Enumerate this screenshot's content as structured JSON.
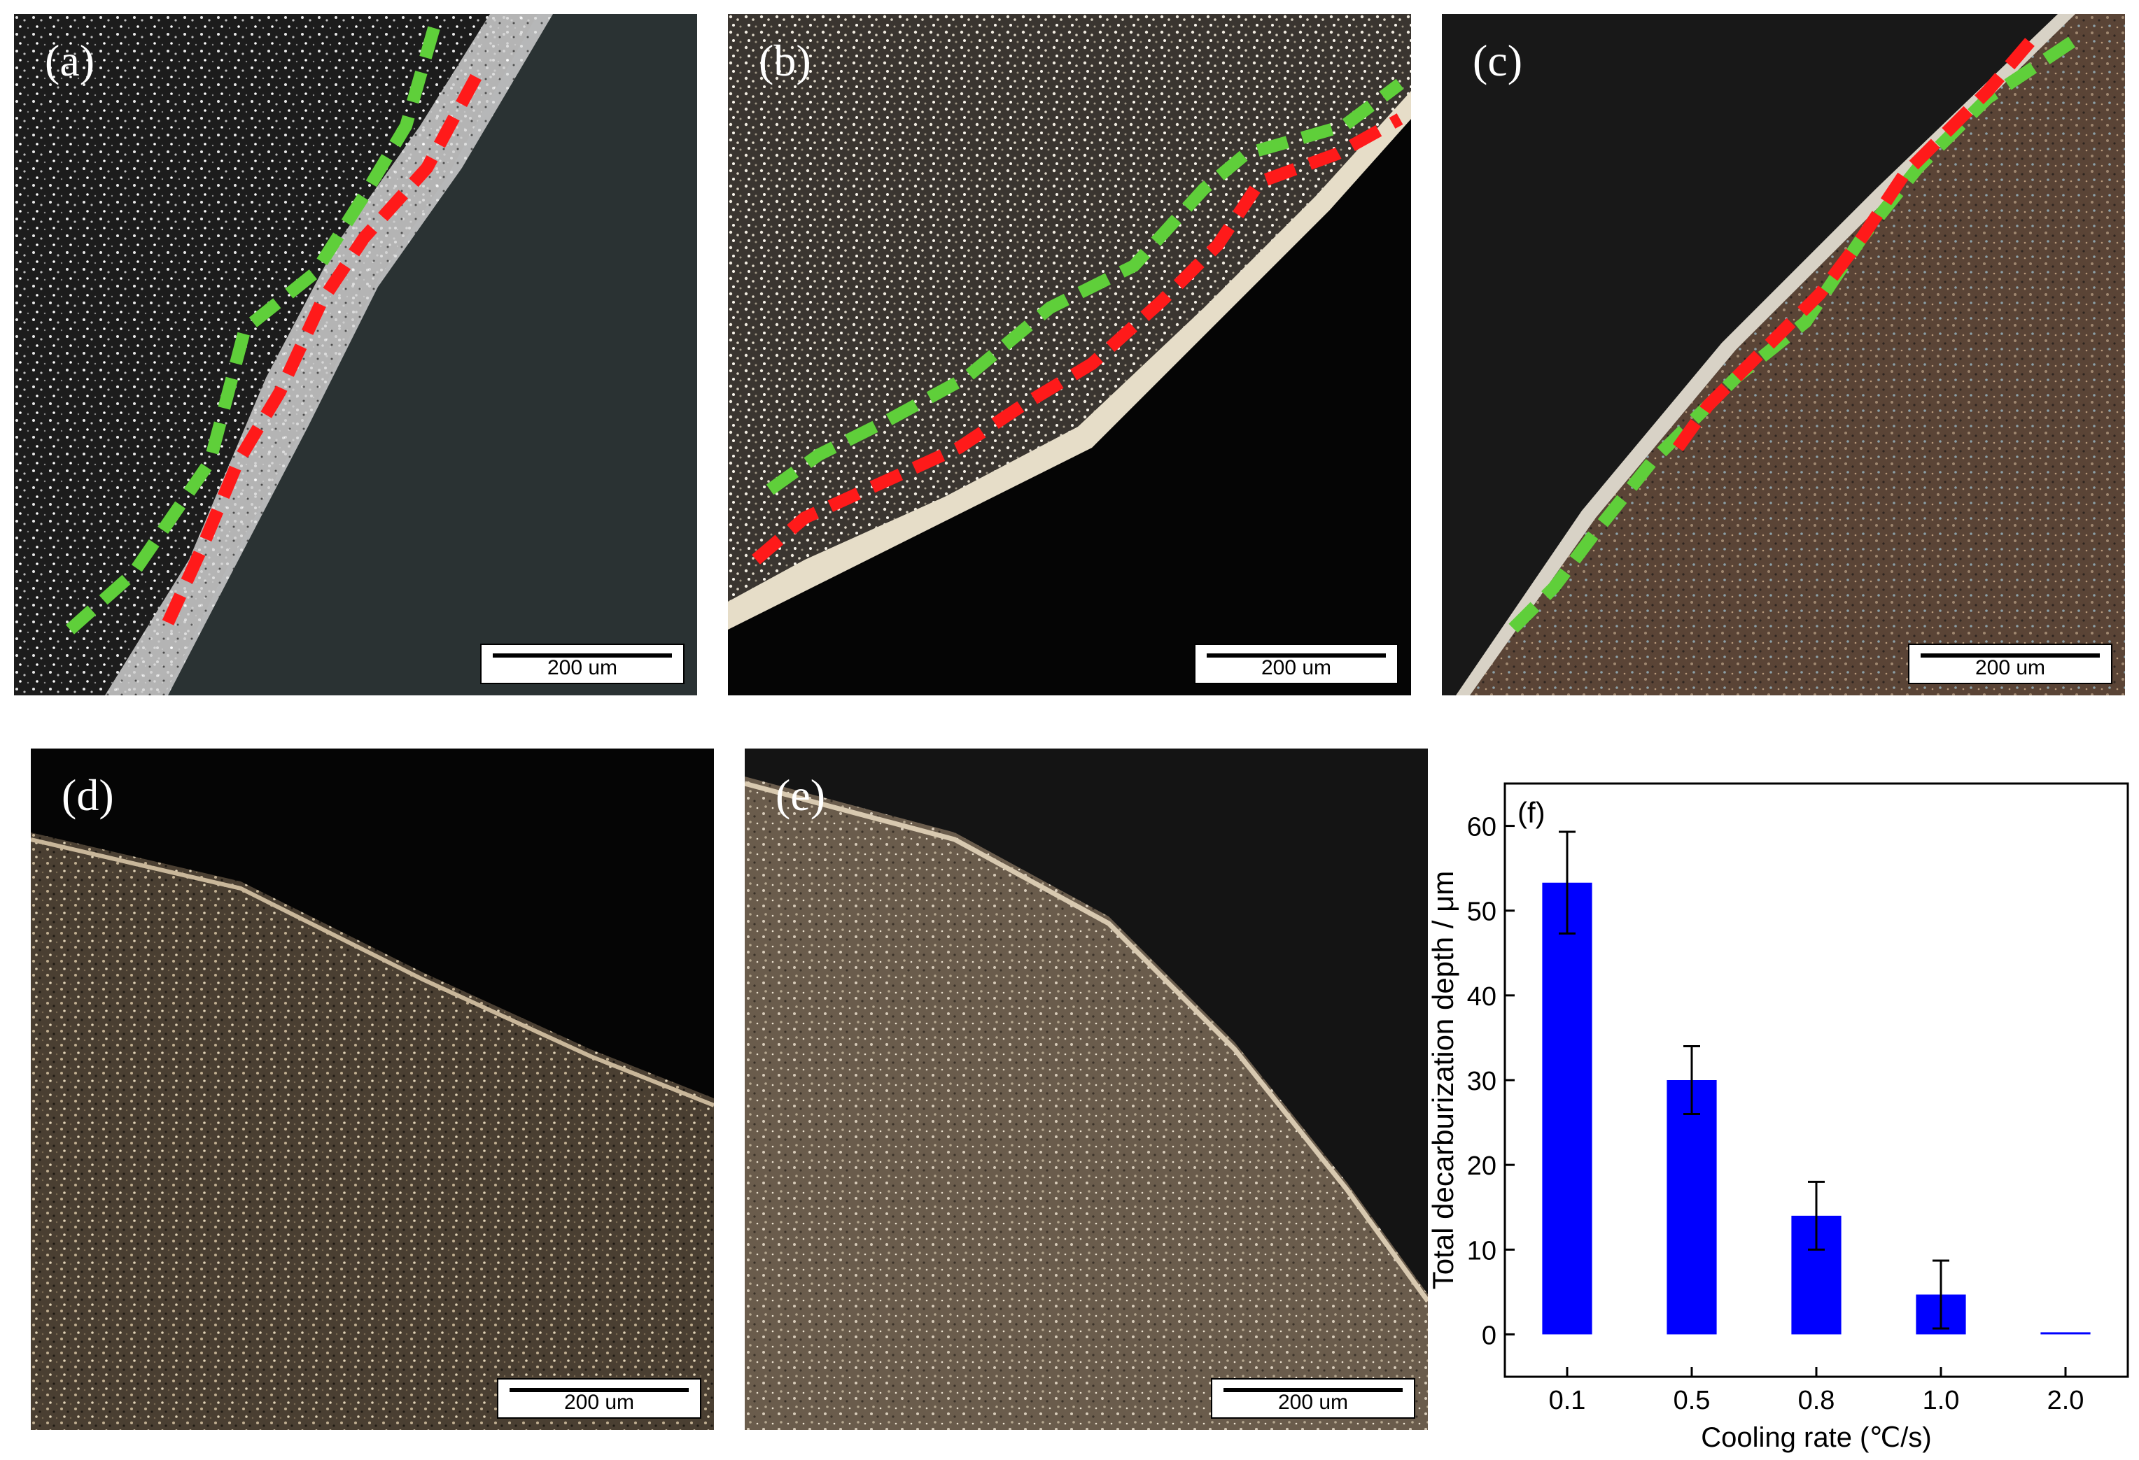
{
  "panels": [
    {
      "id": "a",
      "label": "(a)",
      "scale": "200 um"
    },
    {
      "id": "b",
      "label": "(b)",
      "scale": "200 um"
    },
    {
      "id": "c",
      "label": "(c)",
      "scale": "200 um"
    },
    {
      "id": "d",
      "label": "(d)",
      "scale": "200 um"
    },
    {
      "id": "e",
      "label": "(e)",
      "scale": "200 um"
    }
  ],
  "colors": {
    "ferrite_line": "#5fcf3a",
    "total_line": "#ff1a1a",
    "bar": "#0000ff"
  },
  "chart_data": {
    "type": "bar",
    "panel_label": "(f)",
    "categories": [
      "0.1",
      "0.5",
      "0.8",
      "1.0",
      "2.0"
    ],
    "values": [
      53.3,
      30,
      14,
      4.7,
      0
    ],
    "errors": [
      6,
      4,
      4,
      4,
      0
    ],
    "xlabel": "Cooling rate (℃/s)",
    "ylabel": "Total decarburization depth / μm",
    "ylim": [
      -5,
      65
    ],
    "yticks": [
      0,
      10,
      20,
      30,
      40,
      50,
      60
    ],
    "grid": false
  }
}
